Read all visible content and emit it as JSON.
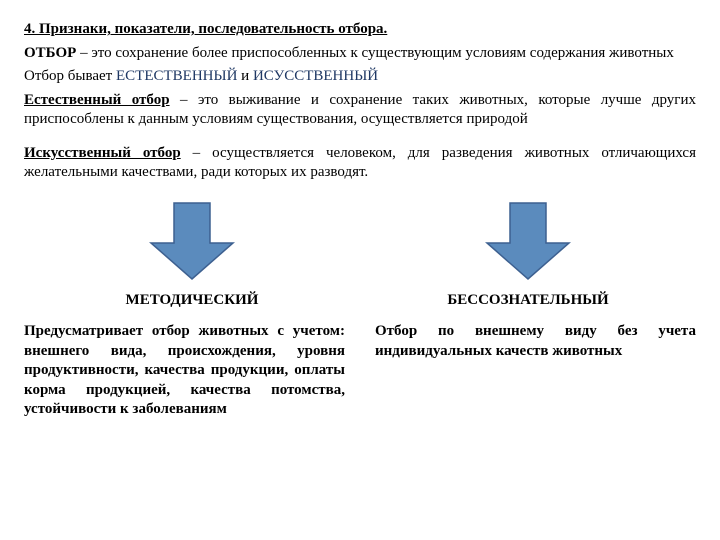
{
  "title": "4. Признаки, показатели, последовательность отбора.",
  "p1_lead": "ОТБОР",
  "p1_rest": " – это сохранение более приспособленных к существующим условиям содержания животных",
  "p2_pre": "Отбор бывает ",
  "p2_nat": "ЕСТЕСТВЕННЫЙ",
  "p2_and": " и ",
  "p2_art": "ИСУССТВЕННЫЙ",
  "p3_lead": "Естественный отбор",
  "p3_rest": " – это выживание и сохранение таких животных, которые лучше других приспособлены к данным условиям существования, осуществляется природой",
  "p4_lead": "Искусственный отбор",
  "p4_rest": " – осуществляется человеком, для разведения животных отличающихся желательными качествами, ради которых их разводят.",
  "arrow": {
    "fill": "#5b8bbd",
    "stroke": "#3d6090",
    "stroke_width": 1.5,
    "width": 90,
    "height": 80
  },
  "col_left_head": "МЕТОДИЧЕСКИЙ",
  "col_right_head": "БЕССОЗНАТЕЛЬНЫЙ",
  "col_left_desc": "Предусматривает отбор животных с учетом: внешнего вида, происхождения, уровня продуктивности, качества продукции, оплаты корма продукцией, качества потомства, устойчивости к заболеваниям",
  "col_right_desc": "Отбор по внешнему виду без учета индивидуальных качеств животных"
}
